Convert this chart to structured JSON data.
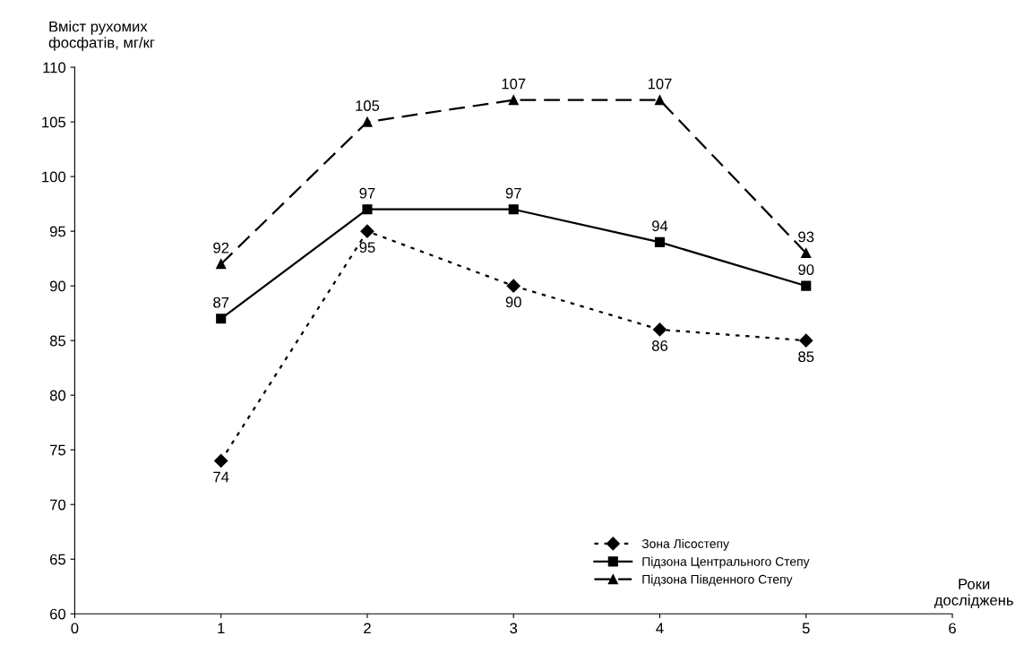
{
  "chart_data": {
    "type": "line",
    "ylabel": "Вміст рухомих\nфосфатів, мг/кг",
    "xlabel": "Роки\nдосліджень",
    "x": [
      1,
      2,
      3,
      4,
      5
    ],
    "xlim": [
      0,
      6
    ],
    "xticks": [
      0,
      1,
      2,
      3,
      4,
      5,
      6
    ],
    "ylim": [
      60,
      110
    ],
    "yticks": [
      60,
      65,
      70,
      75,
      80,
      85,
      90,
      95,
      100,
      105,
      110
    ],
    "grid": false,
    "legend": "bottom right",
    "data_labels": true,
    "series": [
      {
        "name": "Зона Лісостепу",
        "color": "#000000",
        "values": [
          74,
          95,
          90,
          86,
          85
        ],
        "marker": "diamond",
        "line_style": "dotted"
      },
      {
        "name": "Підзона Центрального Степу",
        "color": "#000000",
        "values": [
          87,
          97,
          97,
          94,
          90
        ],
        "marker": "square",
        "line_style": "solid"
      },
      {
        "name": "Підзона Південного Степу",
        "color": "#000000",
        "values": [
          92,
          105,
          107,
          107,
          93
        ],
        "marker": "triangle",
        "line_style": "dashed"
      }
    ]
  }
}
